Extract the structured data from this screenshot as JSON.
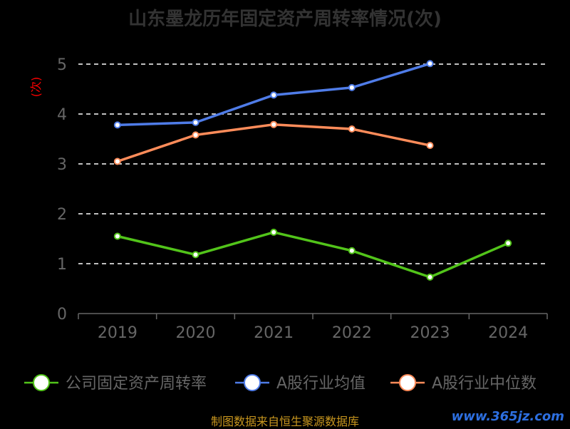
{
  "chart_data": {
    "type": "line",
    "title": "山东墨龙历年固定资产周转率情况(次)",
    "ylabel": "(次)",
    "categories": [
      "2019",
      "2020",
      "2021",
      "2022",
      "2023",
      "2024"
    ],
    "ylim": [
      0,
      5
    ],
    "yticks": [
      "0",
      "1",
      "2",
      "3",
      "4",
      "5"
    ],
    "grid": true,
    "legend_position": "bottom",
    "series": [
      {
        "name": "公司固定资产周转率",
        "color": "#52c41a",
        "values": [
          1.55,
          1.18,
          1.63,
          1.26,
          0.73,
          1.41
        ]
      },
      {
        "name": "A股行业均值",
        "color": "#4f7ce8",
        "values": [
          3.78,
          3.83,
          4.38,
          4.53,
          5.01,
          null
        ]
      },
      {
        "name": "A股行业中位数",
        "color": "#ff8c5a",
        "values": [
          3.05,
          3.58,
          3.79,
          3.7,
          3.37,
          null
        ]
      }
    ]
  },
  "footer": "制图数据来自恒生聚源数据库",
  "watermark": "www.365jz.com"
}
